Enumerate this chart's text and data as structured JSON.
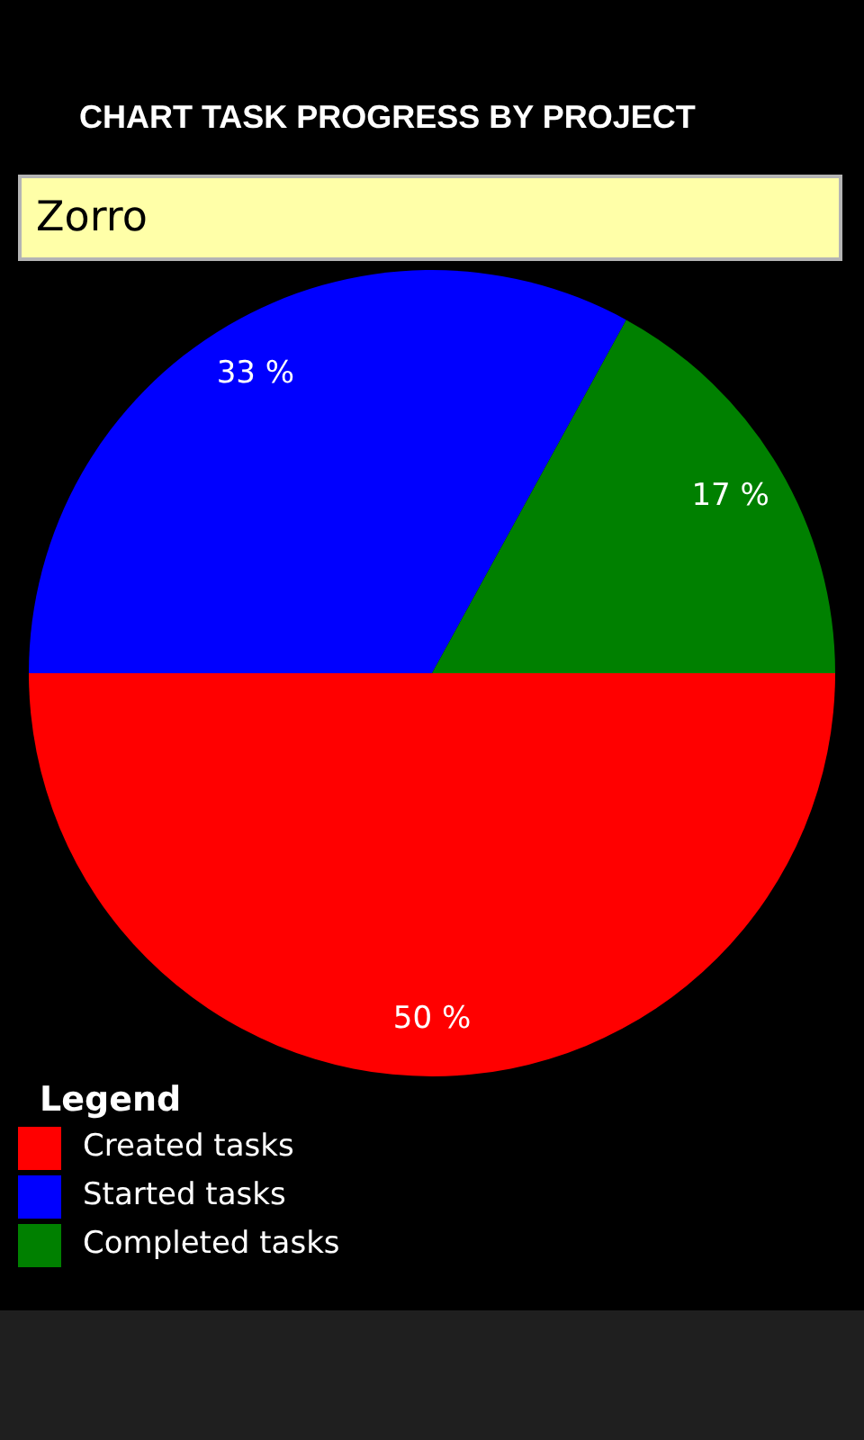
{
  "chart_data": {
    "type": "pie",
    "title": "CHART TASK PROGRESS BY PROJECT",
    "subtitle": "Zorro",
    "categories": [
      "Created tasks",
      "Started tasks",
      "Completed tasks"
    ],
    "values": [
      50,
      33,
      17
    ],
    "colors": [
      "#ff0000",
      "#0000ff",
      "#008000"
    ],
    "value_labels": [
      "50 %",
      "33 %",
      "17 %"
    ],
    "legend": "bottom left",
    "legend_title": "Legend"
  }
}
